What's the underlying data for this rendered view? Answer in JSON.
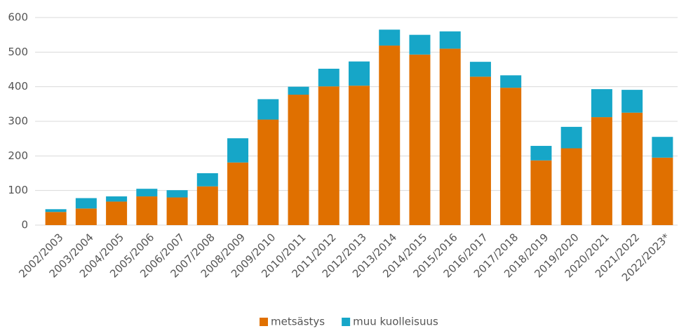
{
  "chart_data": {
    "type": "stacked_bar",
    "categories": [
      "2002/2003",
      "2003/2004",
      "2004/2005",
      "2005/2006",
      "2006/2007",
      "2007/2008",
      "2008/2009",
      "2009/2010",
      "2010/2011",
      "2011/2012",
      "2012/2013",
      "2013/2014",
      "2014/2015",
      "2015/2016",
      "2016/2017",
      "2017/2018",
      "2018/2019",
      "2019/2020",
      "2020/2021",
      "2021/2022",
      "2022/2023*"
    ],
    "series": [
      {
        "name": "metsästys",
        "color": "#e07000",
        "values": [
          38,
          48,
          68,
          83,
          80,
          112,
          181,
          305,
          377,
          401,
          403,
          519,
          493,
          510,
          429,
          397,
          187,
          222,
          312,
          325,
          195
        ]
      },
      {
        "name": "muu kuolleisuus",
        "color": "#16a6c8",
        "values": [
          8,
          30,
          15,
          22,
          21,
          38,
          70,
          59,
          23,
          51,
          70,
          46,
          57,
          50,
          43,
          36,
          42,
          62,
          81,
          66,
          60
        ]
      }
    ],
    "ylim": [
      0,
      600
    ],
    "yticks": [
      0,
      100,
      200,
      300,
      400,
      500,
      600
    ],
    "grid": true,
    "legend": "bottom"
  }
}
